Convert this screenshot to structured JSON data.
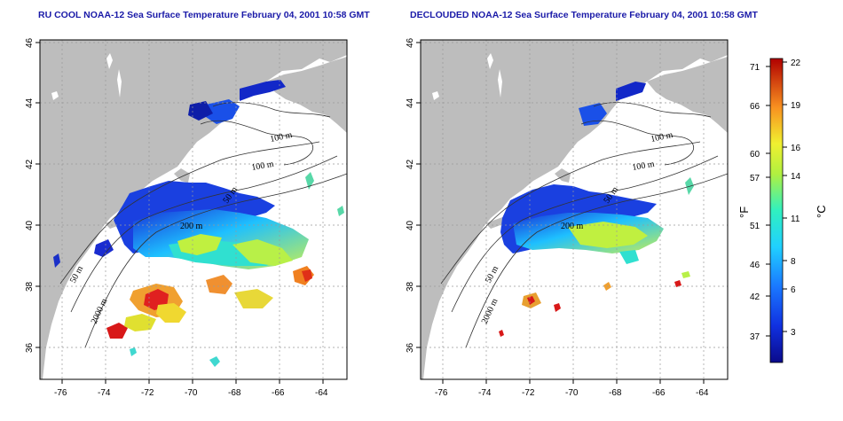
{
  "panels": [
    {
      "id": "left",
      "title": "RU COOL NOAA-12 Sea Surface Temperature February 04, 2001 10:58 GMT",
      "x_ticks": [
        "-76",
        "-74",
        "-72",
        "-70",
        "-68",
        "-66",
        "-64"
      ],
      "y_ticks": [
        "46",
        "44",
        "42",
        "40",
        "38",
        "36"
      ],
      "depth_labels": [
        "100 m",
        "100 m",
        "50 m",
        "200 m",
        "50 m",
        "2000 m"
      ]
    },
    {
      "id": "right",
      "title": "DECLOUDED NOAA-12 Sea Surface Temperature February 04, 2001 10:58 GMT",
      "x_ticks": [
        "-76",
        "-74",
        "-72",
        "-70",
        "-68",
        "-66",
        "-64"
      ],
      "y_ticks": [
        "46",
        "44",
        "42",
        "40",
        "38",
        "36"
      ],
      "depth_labels": [
        "100 m",
        "100 m",
        "50 m",
        "200 m",
        "50 m",
        "2000 m"
      ]
    }
  ],
  "colorbar": {
    "fahrenheit_ticks": [
      "71",
      "66",
      "60",
      "57",
      "51",
      "46",
      "42",
      "37"
    ],
    "celsius_ticks": [
      "22",
      "19",
      "16",
      "14",
      "11",
      "8",
      "6",
      "3"
    ],
    "fahrenheit_unit": "°F",
    "celsius_unit": "°C"
  },
  "colors": {
    "land": "#bdbdbd",
    "title": "#1a1aa8",
    "cold": "#0a1aa0",
    "mid": "#2ad0ff",
    "warm": "#f0ea30",
    "hot": "#d81818"
  }
}
